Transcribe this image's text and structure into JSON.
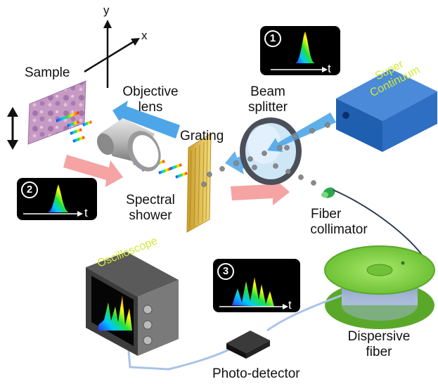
{
  "labels": {
    "axis_y": "y",
    "axis_x": "x",
    "sample": "Sample",
    "objective_l1": "Objective",
    "objective_l2": "lens",
    "beam_l1": "Beam",
    "beam_l2": "splitter",
    "grating": "Grating",
    "spectral_l1": "Spectral",
    "spectral_l2": "shower",
    "fiber_col_l1": "Fiber",
    "fiber_col_l2": "collimator",
    "dispersive_l1": "Dispersive",
    "dispersive_l2": "fiber",
    "photodetector": "Photo-detector",
    "supercontinuum_l1": "Super",
    "supercontinuum_l2": "Continuum",
    "oscilloscope": "Oscilloscope"
  },
  "pulse_boxes": [
    {
      "number": "1",
      "axis": "t"
    },
    {
      "number": "2",
      "axis": "t"
    },
    {
      "number": "3",
      "axis": "t"
    }
  ],
  "colors": {
    "supercontinuum_blue": "#1f5fb0",
    "label_yellow": "#d4e83a",
    "fiber_green": "#8fd94a",
    "return_beam": "#f5a3a3",
    "forward_beam": "#4ea6e8",
    "grating_gold": "#e0c050"
  }
}
